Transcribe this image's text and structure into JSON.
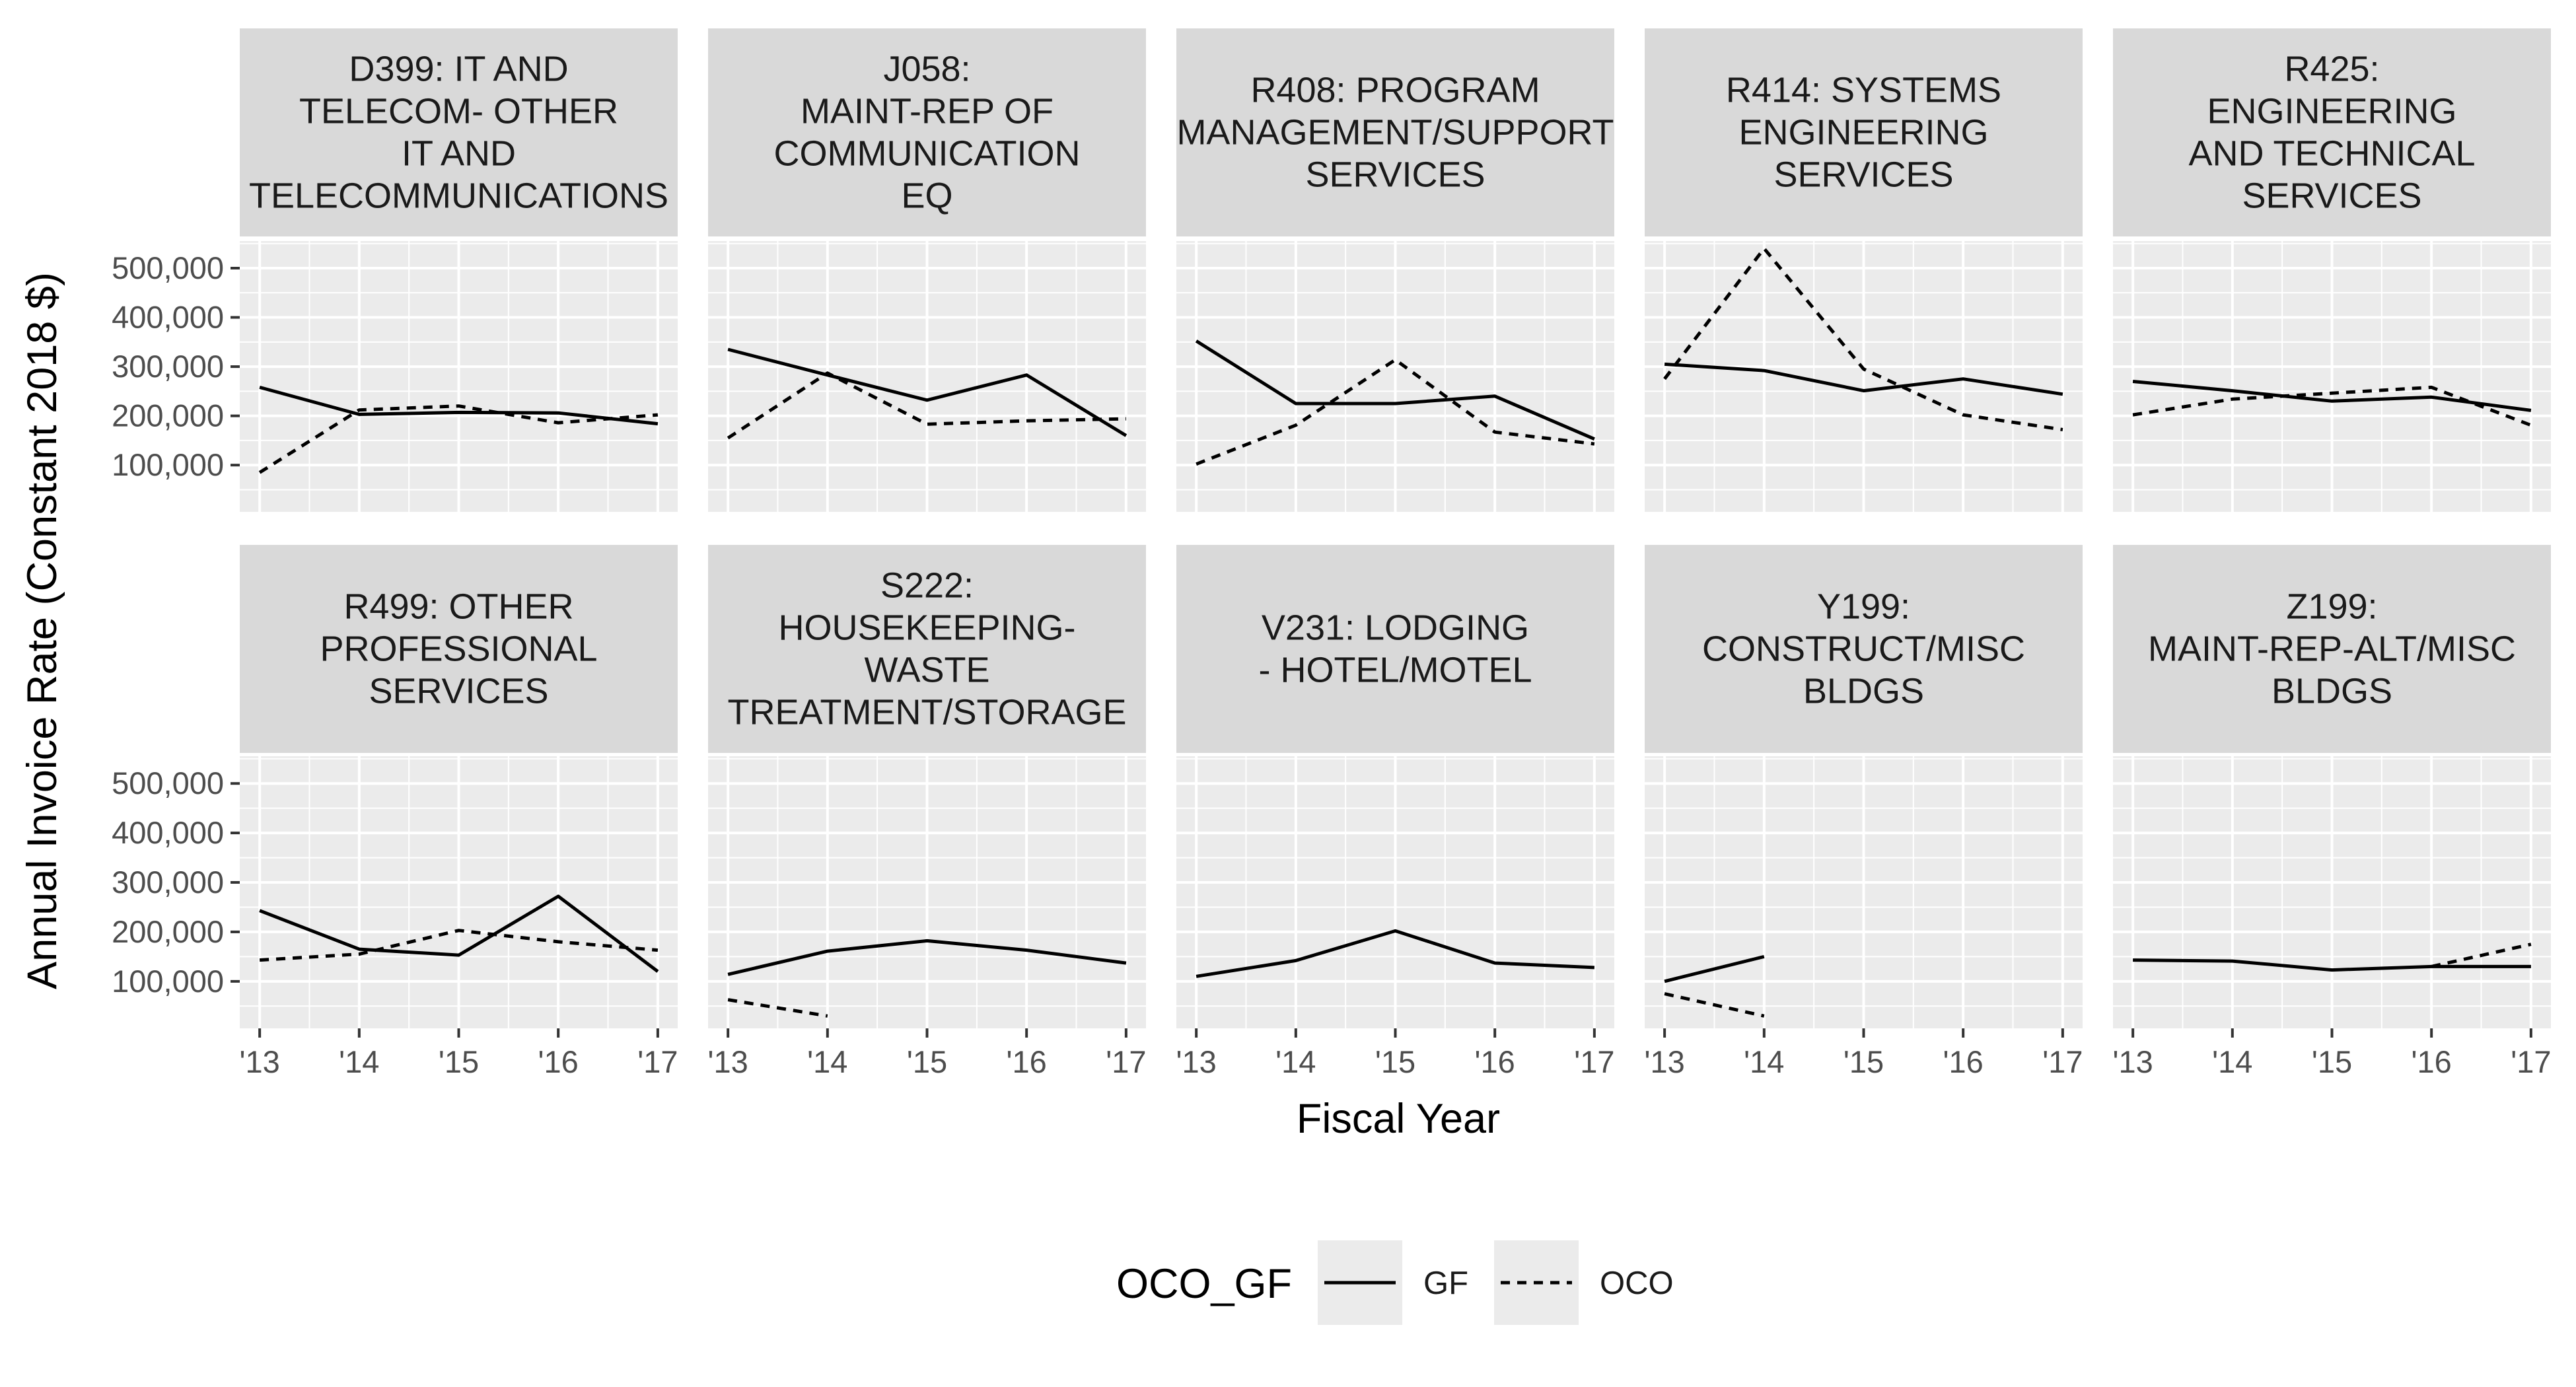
{
  "chart_data": {
    "type": "line",
    "xlabel": "Fiscal Year",
    "ylabel": "Annual Invoice Rate (Constant 2018 $)",
    "x": [
      2013,
      2014,
      2015,
      2016,
      2017
    ],
    "x_tick_labels": [
      "'13",
      "'14",
      "'15",
      "'16",
      "'17"
    ],
    "y_ticks": [
      100000,
      200000,
      300000,
      400000,
      500000
    ],
    "y_tick_labels": [
      "100,000",
      "200,000",
      "300,000",
      "400,000",
      "500,000"
    ],
    "xlim": [
      2012.8,
      2017.2
    ],
    "ylim": [
      5000,
      555000
    ],
    "grid": true,
    "legend": {
      "title": "OCO_GF",
      "position": "bottom",
      "entries": [
        {
          "name": "GF",
          "linetype": "solid"
        },
        {
          "name": "OCO",
          "linetype": "dashed"
        }
      ]
    },
    "colors": {
      "panel_bg": "#ebebeb",
      "strip_bg": "#d9d9d9",
      "grid": "#ffffff",
      "line": "#000000"
    },
    "facets": [
      {
        "title": [
          "D399: IT AND",
          "TELECOM- OTHER",
          "IT AND",
          "TELECOMMUNICATIONS"
        ],
        "series": [
          {
            "name": "GF",
            "values": [
              258000,
              203000,
              207000,
              206000,
              184000
            ]
          },
          {
            "name": "OCO",
            "values": [
              85000,
              212000,
              220000,
              186000,
              202000
            ]
          }
        ]
      },
      {
        "title": [
          "J058:",
          "MAINT-REP OF",
          "COMMUNICATION",
          "EQ"
        ],
        "series": [
          {
            "name": "GF",
            "values": [
              335000,
              283000,
              232000,
              283000,
              160000
            ]
          },
          {
            "name": "OCO",
            "values": [
              155000,
              287000,
              183000,
              190000,
              194000
            ]
          }
        ]
      },
      {
        "title": [
          "R408: PROGRAM",
          "MANAGEMENT/SUPPORT",
          "SERVICES"
        ],
        "series": [
          {
            "name": "GF",
            "values": [
              352000,
              225000,
              225000,
              240000,
              153000
            ]
          },
          {
            "name": "OCO",
            "values": [
              102000,
              181000,
              314000,
              167000,
              143000
            ]
          }
        ]
      },
      {
        "title": [
          "R414: SYSTEMS",
          "ENGINEERING",
          "SERVICES"
        ],
        "series": [
          {
            "name": "GF",
            "values": [
              305000,
              292000,
              251000,
              275000,
              244000
            ]
          },
          {
            "name": "OCO",
            "values": [
              275000,
              540000,
              295000,
              202000,
              172000
            ]
          }
        ]
      },
      {
        "title": [
          "R425:",
          "ENGINEERING",
          "AND TECHNICAL",
          "SERVICES"
        ],
        "series": [
          {
            "name": "GF",
            "values": [
              270000,
              251000,
              230000,
              238000,
              211000
            ]
          },
          {
            "name": "OCO",
            "values": [
              202000,
              234000,
              246000,
              258000,
              181000
            ]
          }
        ]
      },
      {
        "title": [
          "R499: OTHER",
          "PROFESSIONAL",
          "SERVICES"
        ],
        "series": [
          {
            "name": "GF",
            "values": [
              243000,
              165000,
              153000,
              272000,
              120000
            ]
          },
          {
            "name": "OCO",
            "values": [
              143000,
              155000,
              203000,
              180000,
              163000
            ]
          }
        ]
      },
      {
        "title": [
          "S222:",
          "HOUSEKEEPING-",
          "WASTE",
          "TREATMENT/STORAGE"
        ],
        "series": [
          {
            "name": "GF",
            "values": [
              114000,
              161000,
              182000,
              163000,
              137000
            ]
          },
          {
            "name": "OCO",
            "values": [
              63000,
              30000,
              null,
              null,
              null
            ]
          }
        ]
      },
      {
        "title": [
          "V231: LODGING",
          "- HOTEL/MOTEL"
        ],
        "series": [
          {
            "name": "GF",
            "values": [
              110000,
              142000,
              202000,
              137000,
              128000
            ]
          },
          {
            "name": "OCO",
            "values": [
              null,
              null,
              null,
              null,
              null
            ]
          }
        ]
      },
      {
        "title": [
          "Y199:",
          "CONSTRUCT/MISC",
          "BLDGS"
        ],
        "series": [
          {
            "name": "GF",
            "values": [
              100000,
              150000,
              null,
              null,
              null
            ]
          },
          {
            "name": "OCO",
            "values": [
              75000,
              30000,
              null,
              null,
              null
            ]
          }
        ]
      },
      {
        "title": [
          "Z199:",
          "MAINT-REP-ALT/MISC",
          "BLDGS"
        ],
        "series": [
          {
            "name": "GF",
            "values": [
              143000,
              141000,
              123000,
              130000,
              130000
            ]
          },
          {
            "name": "OCO",
            "values": [
              null,
              null,
              null,
              130000,
              175000
            ]
          }
        ]
      }
    ]
  }
}
